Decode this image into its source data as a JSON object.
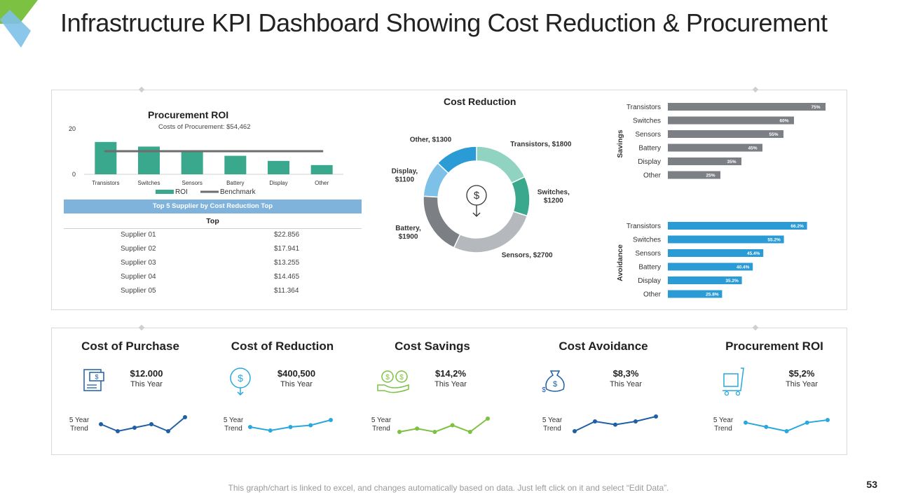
{
  "page": {
    "title": "Infrastructure KPI Dashboard Showing Cost Reduction & Procurement",
    "footer": "This graph/chart is linked to excel, and changes automatically based on data. Just left click on it and select “Edit Data”.",
    "page_number": "53"
  },
  "supplier_table": {
    "header": "Top 5 Supplier by Cost Reduction Top",
    "column": "Top",
    "rows": [
      {
        "name": "Supplier 01",
        "value": "$22.856"
      },
      {
        "name": "Supplier 02",
        "value": "$17.941"
      },
      {
        "name": "Supplier 03",
        "value": "$13.255"
      },
      {
        "name": "Supplier 04",
        "value": "$14.465"
      },
      {
        "name": "Supplier 05",
        "value": "$11.364"
      }
    ]
  },
  "kpis": [
    {
      "title": "Cost of Purchase",
      "value": "$12.000",
      "sub": "This Year",
      "trend_label_1": "5 Year",
      "trend_label_2": "Trend",
      "icon": "invoice-icon",
      "trend_color": "#1f5fa6",
      "trend": [
        5,
        3,
        4,
        5,
        3,
        7
      ]
    },
    {
      "title": "Cost of Reduction",
      "value": "$400,500",
      "sub": "This Year",
      "trend_label_1": "5 Year",
      "trend_label_2": "Trend",
      "icon": "dollar-clock-icon",
      "trend_color": "#2aa7dc",
      "trend": [
        4,
        3,
        4,
        4.5,
        6
      ]
    },
    {
      "title": "Cost Savings",
      "value": "$14,2%",
      "sub": "This Year",
      "trend_label_1": "5 Year",
      "trend_label_2": "Trend",
      "icon": "hand-coins-icon",
      "trend_color": "#7dc142",
      "trend": [
        4,
        4.5,
        4,
        5,
        4,
        6
      ]
    },
    {
      "title": "Cost Avoidance",
      "value": "$8,3%",
      "sub": "This Year",
      "trend_label_1": "5 Year",
      "trend_label_2": "Trend",
      "icon": "money-bag-icon",
      "trend_color": "#1f5fa6",
      "trend": [
        2,
        5,
        4,
        5,
        6.5
      ]
    },
    {
      "title": "Procurement ROI",
      "value": "$5,2%",
      "sub": "This Year",
      "trend_label_1": "5 Year",
      "trend_label_2": "Trend",
      "icon": "cart-box-icon",
      "trend_color": "#2aa7dc",
      "trend": [
        5,
        4.5,
        4,
        5,
        5.3
      ]
    }
  ],
  "chart_data": [
    {
      "type": "bar",
      "title": "Procurement ROI",
      "subtitle": "Costs of Procurement: $54,462",
      "categories": [
        "Transistors",
        "Switches",
        "Sensors",
        "Battery",
        "Display",
        "Other"
      ],
      "series": [
        {
          "name": "ROI",
          "values": [
            14,
            12,
            10,
            8,
            5.8,
            4
          ],
          "color": "#3aa88c"
        },
        {
          "name": "Benchmark",
          "values": [
            10,
            10,
            10,
            10,
            10,
            10
          ],
          "color": "#6d6d6d",
          "style": "line"
        }
      ],
      "y_ticks": [
        "0",
        "20"
      ],
      "ylim": [
        0,
        20
      ],
      "legend": "bottom"
    },
    {
      "type": "pie",
      "style": "donut",
      "title": "Cost Reduction",
      "slices": [
        {
          "label": "Transistors, $1800",
          "value": 1800,
          "color": "#8fd3c0"
        },
        {
          "label": "Switches, $1200",
          "value": 1200,
          "color": "#3aa88c"
        },
        {
          "label": "Sensors, $2700",
          "value": 2700,
          "color": "#b5b8bc"
        },
        {
          "label": "Battery, $1900",
          "value": 1900,
          "color": "#7c7f84"
        },
        {
          "label": "Display, $1100",
          "value": 1100,
          "color": "#7ec1e8"
        },
        {
          "label": "Other, $1300",
          "value": 1300,
          "color": "#2b9bd6"
        }
      ]
    },
    {
      "type": "bar",
      "orientation": "horizontal",
      "ylabel": "Savings",
      "color": "#7c7f84",
      "categories": [
        "Transistors",
        "Switches",
        "Sensors",
        "Battery",
        "Display",
        "Other"
      ],
      "values": [
        75,
        60,
        55,
        45,
        35,
        25
      ],
      "value_labels": [
        "75%",
        "60%",
        "55%",
        "45%",
        "35%",
        "25%"
      ]
    },
    {
      "type": "bar",
      "orientation": "horizontal",
      "ylabel": "Avoidance",
      "color": "#2b9bd6",
      "categories": [
        "Transistors",
        "Switches",
        "Sensors",
        "Battery",
        "Display",
        "Other"
      ],
      "values": [
        66.2,
        55.2,
        45.4,
        40.4,
        35.2,
        25.8
      ],
      "value_labels": [
        "66.2%",
        "55.2%",
        "45.4%",
        "40.4%",
        "35.2%",
        "25.8%"
      ]
    }
  ]
}
